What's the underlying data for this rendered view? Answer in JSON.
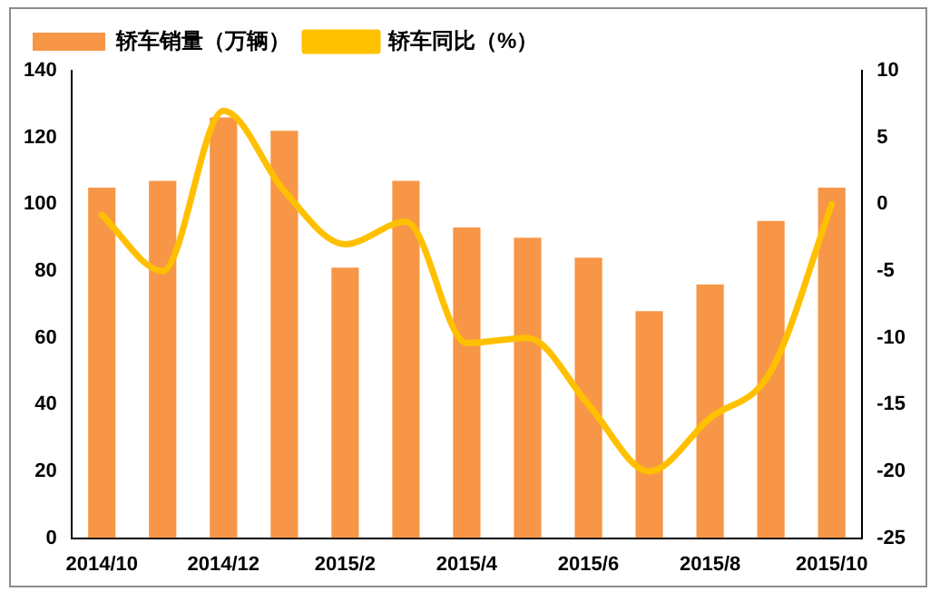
{
  "chart_data": {
    "type": "bar",
    "categories": [
      "2014/10",
      null,
      "2014/12",
      null,
      "2015/2",
      null,
      "2015/4",
      null,
      "2015/6",
      null,
      "2015/8",
      null,
      "2015/10"
    ],
    "series": [
      {
        "name": "轿车销量（万辆）",
        "color": "#f79646",
        "values": [
          105,
          107,
          126,
          122,
          81,
          107,
          93,
          90,
          84,
          68,
          76,
          95,
          105
        ]
      },
      {
        "name": "轿车同比（%）",
        "type": "line",
        "axis": "y2",
        "color": "#ffc000",
        "values": [
          -0.8,
          -5,
          7,
          1,
          -3,
          -1.3,
          -10.4,
          -10,
          -15,
          -20,
          -16,
          -12.5,
          0
        ]
      }
    ],
    "ylim": [
      0,
      140
    ],
    "yticks": [
      0,
      20,
      40,
      60,
      80,
      100,
      120,
      140
    ],
    "y2lim": [
      -25,
      10
    ],
    "y2ticks": [
      -25,
      -20,
      -15,
      -10,
      -5,
      0,
      5,
      10
    ],
    "grid": false,
    "legend": "top left",
    "marker": "none",
    "line_style": "solid"
  }
}
